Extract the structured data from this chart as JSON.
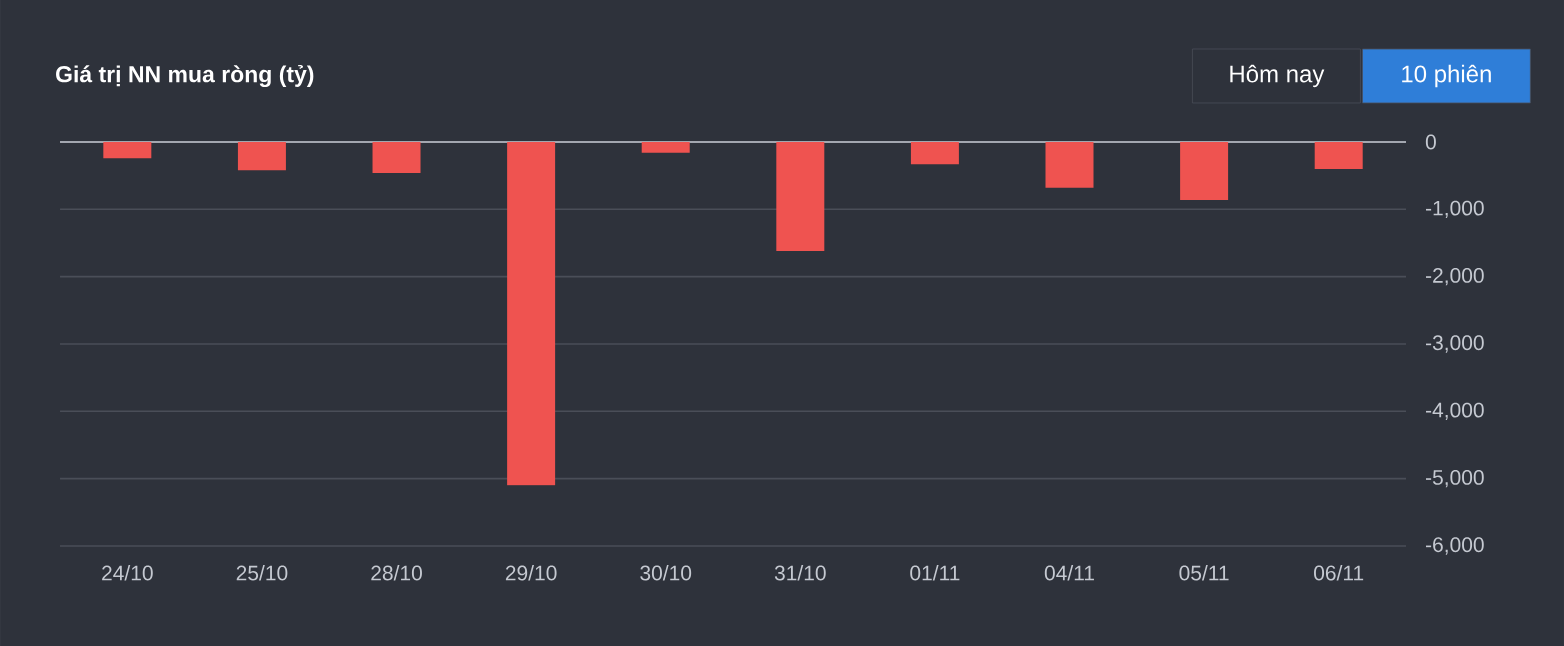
{
  "chart_data": {
    "type": "bar",
    "title": "Giá trị NN mua ròng (tỷ)",
    "categories": [
      "24/10",
      "25/10",
      "28/10",
      "29/10",
      "30/10",
      "31/10",
      "01/11",
      "04/11",
      "05/11",
      "06/11"
    ],
    "values": [
      -240,
      -420,
      -460,
      -5100,
      -160,
      -1620,
      -330,
      -680,
      -860,
      -400
    ],
    "color": "#ef5350",
    "ylim": [
      -6000,
      0
    ],
    "yticks": [
      {
        "value": -6000,
        "label": "-6,000"
      },
      {
        "value": -5000,
        "label": "-5,000"
      },
      {
        "value": -4000,
        "label": "-4,000"
      },
      {
        "value": -3000,
        "label": "-3,000"
      },
      {
        "value": -2000,
        "label": "-2,000"
      },
      {
        "value": -1000,
        "label": "-1,000"
      },
      0
    ],
    "grid": "y",
    "annotations": [
      "Hôm nay",
      "10 phiên"
    ]
  }
}
